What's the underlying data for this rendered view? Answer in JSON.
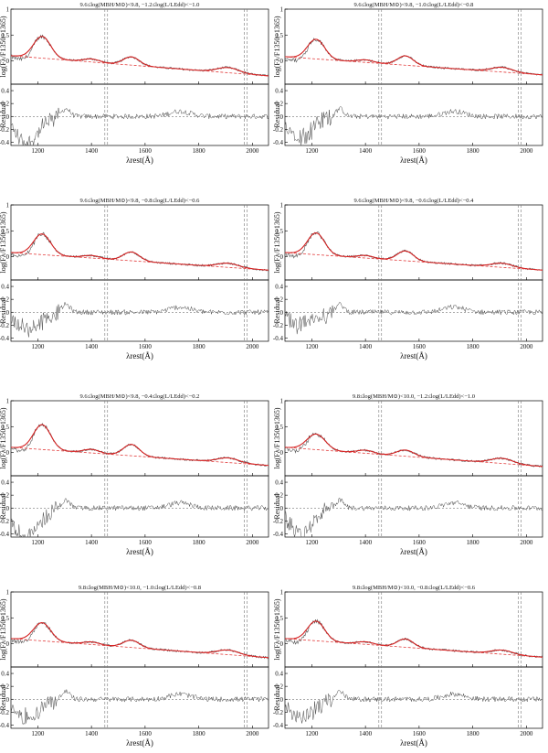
{
  "chart_data": {
    "type": "line",
    "xlabel": "λrest(Å)",
    "ylabel_top": "log(Fλ/F1350−1365)",
    "ylabel_bottom": "Residual",
    "xlim": [
      1100,
      2060
    ],
    "ylim_top": [
      -0.45,
      1.0
    ],
    "ylim_bottom": [
      -0.45,
      0.5
    ],
    "x_ticks": [
      1200,
      1400,
      1600,
      1800,
      2000
    ],
    "y_ticks_top": [
      0,
      0.5,
      1
    ],
    "y_ticks_bottom": [
      -0.4,
      -0.2,
      0,
      0.2,
      0.4
    ],
    "vertical_lines": [
      1450,
      1460,
      1970,
      1980
    ],
    "colors": {
      "model": "#d42020",
      "continuum": "#e23b3b",
      "data": "#555555",
      "residual_excluded": "#aaaaaa",
      "residual_fit": "#444444",
      "guides": "#777777"
    },
    "panels": [
      {
        "title": "9.6≤log(MBH/M⊙)<9.8, −1.2≤log(L/LEdd)<−1.0",
        "continuum": [
          0.1,
          -0.29
        ],
        "lines": [
          {
            "x": 1216,
            "y": 0.42,
            "w": 32
          },
          {
            "x": 1400,
            "y": 0.06,
            "w": 30
          },
          {
            "x": 1549,
            "y": 0.16,
            "w": 30
          },
          {
            "x": 1909,
            "y": 0.1,
            "w": 40
          }
        ],
        "residual_min": -0.4
      },
      {
        "title": "9.6≤log(MBH/M⊙)<9.8, −1.0≤log(L/LEdd)<−0.8",
        "continuum": [
          0.08,
          -0.27
        ],
        "lines": [
          {
            "x": 1216,
            "y": 0.38,
            "w": 32
          },
          {
            "x": 1400,
            "y": 0.05,
            "w": 30
          },
          {
            "x": 1549,
            "y": 0.18,
            "w": 30
          },
          {
            "x": 1909,
            "y": 0.09,
            "w": 40
          }
        ],
        "residual_min": -0.3
      },
      {
        "title": "9.6≤log(MBH/M⊙)<9.8, −0.8≤log(L/LEdd)<−0.6",
        "continuum": [
          0.08,
          -0.26
        ],
        "lines": [
          {
            "x": 1216,
            "y": 0.4,
            "w": 32
          },
          {
            "x": 1400,
            "y": 0.05,
            "w": 30
          },
          {
            "x": 1549,
            "y": 0.17,
            "w": 30
          },
          {
            "x": 1909,
            "y": 0.08,
            "w": 40
          }
        ],
        "residual_min": -0.27
      },
      {
        "title": "9.6≤log(MBH/M⊙)<9.8, −0.6≤log(L/LEdd)<−0.4",
        "continuum": [
          0.08,
          -0.26
        ],
        "lines": [
          {
            "x": 1216,
            "y": 0.42,
            "w": 32
          },
          {
            "x": 1400,
            "y": 0.05,
            "w": 30
          },
          {
            "x": 1549,
            "y": 0.19,
            "w": 30
          },
          {
            "x": 1909,
            "y": 0.08,
            "w": 40
          }
        ],
        "residual_min": -0.2
      },
      {
        "title": "9.6≤log(MBH/M⊙)<9.8, −0.4≤log(L/LEdd)<−0.2",
        "continuum": [
          0.1,
          -0.25
        ],
        "lines": [
          {
            "x": 1216,
            "y": 0.48,
            "w": 32
          },
          {
            "x": 1400,
            "y": 0.07,
            "w": 30
          },
          {
            "x": 1549,
            "y": 0.22,
            "w": 30
          },
          {
            "x": 1909,
            "y": 0.09,
            "w": 40
          }
        ],
        "residual_min": -0.45
      },
      {
        "title": "9.8≤log(MBH/M⊙)<10.0, −1.2≤log(L/LEdd)<−1.0",
        "continuum": [
          0.1,
          -0.27
        ],
        "lines": [
          {
            "x": 1216,
            "y": 0.3,
            "w": 34
          },
          {
            "x": 1400,
            "y": 0.06,
            "w": 30
          },
          {
            "x": 1549,
            "y": 0.12,
            "w": 32
          },
          {
            "x": 1909,
            "y": 0.1,
            "w": 40
          }
        ],
        "residual_min": -0.4
      },
      {
        "title": "9.8≤log(MBH/M⊙)<10.0, −1.0≤log(L/LEdd)<−0.8",
        "continuum": [
          0.1,
          -0.27
        ],
        "lines": [
          {
            "x": 1216,
            "y": 0.35,
            "w": 32
          },
          {
            "x": 1400,
            "y": 0.05,
            "w": 30
          },
          {
            "x": 1549,
            "y": 0.14,
            "w": 30
          },
          {
            "x": 1909,
            "y": 0.09,
            "w": 40
          }
        ],
        "residual_min": -0.28
      },
      {
        "title": "9.8≤log(MBH/M⊙)<10.0, −0.8≤log(L/LEdd)<−0.6",
        "continuum": [
          0.1,
          -0.26
        ],
        "lines": [
          {
            "x": 1216,
            "y": 0.38,
            "w": 32
          },
          {
            "x": 1400,
            "y": 0.05,
            "w": 30
          },
          {
            "x": 1549,
            "y": 0.16,
            "w": 30
          },
          {
            "x": 1909,
            "y": 0.08,
            "w": 40
          }
        ],
        "residual_min": -0.3
      }
    ]
  }
}
